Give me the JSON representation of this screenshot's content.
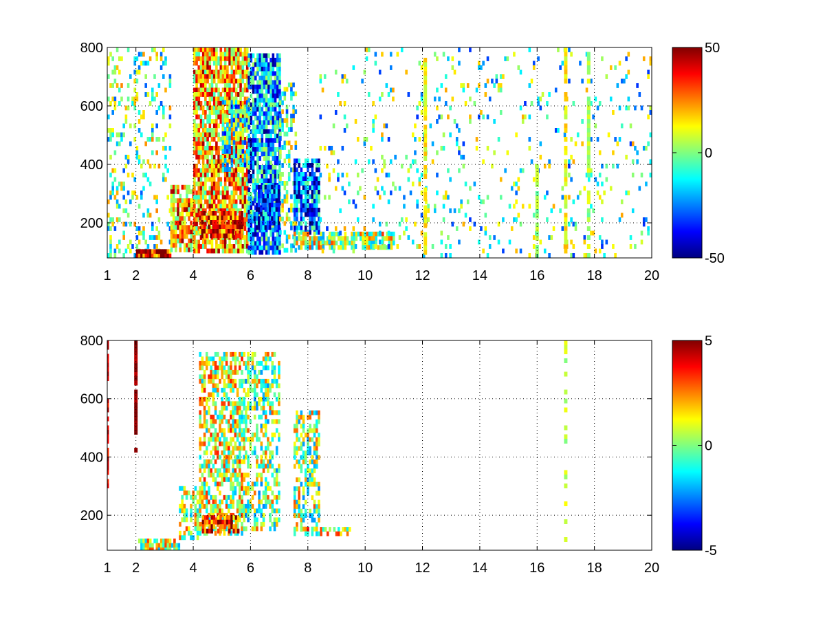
{
  "chart_data": [
    {
      "type": "heatmap",
      "title": "",
      "xlabel": "",
      "ylabel": "",
      "xlim": [
        1,
        20
      ],
      "ylim": [
        80,
        800
      ],
      "xticks": [
        1,
        2,
        4,
        6,
        8,
        10,
        12,
        14,
        16,
        18,
        20
      ],
      "yticks": [
        200,
        400,
        600,
        800
      ],
      "grid": true,
      "colormap": "jet",
      "colorbar": {
        "min": -50,
        "max": 50,
        "ticks": [
          50,
          0,
          -50
        ]
      },
      "colors": {
        "dark_red": "#800000",
        "red": "#ff0000",
        "yellow": "#ffff00",
        "cyan": "#00ffff",
        "blue": "#0000ff",
        "dark_blue": "#000080"
      },
      "regions": [
        {
          "x": [
            1,
            3.2
          ],
          "y": [
            80,
            800
          ],
          "value": -3,
          "density": 0.22,
          "note_free": true
        },
        {
          "x": [
            2,
            3.2
          ],
          "y": [
            80,
            110
          ],
          "value": 40,
          "density": 0.9
        },
        {
          "x": [
            3.2,
            4.0
          ],
          "y": [
            110,
            330
          ],
          "value": 22,
          "density": 0.8
        },
        {
          "x": [
            4.0,
            5.9
          ],
          "y": [
            100,
            800
          ],
          "value": 20,
          "density": 0.85
        },
        {
          "x": [
            4.2,
            5.7
          ],
          "y": [
            150,
            240
          ],
          "value": 35,
          "density": 0.9
        },
        {
          "x": [
            5.0,
            5.9
          ],
          "y": [
            380,
            620
          ],
          "value": -10,
          "density": 0.6
        },
        {
          "x": [
            5.9,
            7.0
          ],
          "y": [
            100,
            780
          ],
          "value": -22,
          "density": 0.85
        },
        {
          "x": [
            6.1,
            7.0
          ],
          "y": [
            180,
            330
          ],
          "value": -32,
          "density": 0.8
        },
        {
          "x": [
            7.0,
            7.6
          ],
          "y": [
            100,
            680
          ],
          "value": -5,
          "density": 0.4
        },
        {
          "x": [
            7.5,
            8.4
          ],
          "y": [
            170,
            420
          ],
          "value": -28,
          "density": 0.85
        },
        {
          "x": [
            7.5,
            11.0
          ],
          "y": [
            120,
            170
          ],
          "value": 5,
          "density": 0.7
        },
        {
          "x": [
            8.4,
            20
          ],
          "y": [
            80,
            800
          ],
          "value": -6,
          "density": 0.08
        }
      ],
      "lines": [
        {
          "x": 12.1,
          "y": [
            100,
            780
          ],
          "value": 12
        },
        {
          "x": 17.0,
          "y": [
            80,
            800
          ],
          "value": 12
        },
        {
          "x": 17.8,
          "y": [
            80,
            800
          ],
          "value": 4
        },
        {
          "x": 16.0,
          "y": [
            80,
            400
          ],
          "value": 2
        }
      ]
    },
    {
      "type": "heatmap",
      "title": "",
      "xlabel": "",
      "ylabel": "",
      "xlim": [
        1,
        20
      ],
      "ylim": [
        80,
        800
      ],
      "xticks": [
        1,
        2,
        4,
        6,
        8,
        10,
        12,
        14,
        16,
        18,
        20
      ],
      "yticks": [
        200,
        400,
        600,
        800
      ],
      "grid": true,
      "colormap": "jet",
      "colorbar": {
        "min": -5,
        "max": 5,
        "ticks": [
          5,
          0,
          -5
        ]
      },
      "regions": [
        {
          "x": [
            2.0,
            3.5
          ],
          "y": [
            80,
            120
          ],
          "value": 0.6,
          "density": 0.75
        },
        {
          "x": [
            3.5,
            4.2
          ],
          "y": [
            130,
            300
          ],
          "value": 0.5,
          "density": 0.5
        },
        {
          "x": [
            4.2,
            5.8
          ],
          "y": [
            140,
            760
          ],
          "value": 0.8,
          "density": 0.6
        },
        {
          "x": [
            4.3,
            5.6
          ],
          "y": [
            150,
            200
          ],
          "value": 3.6,
          "density": 0.8
        },
        {
          "x": [
            5.8,
            7.0
          ],
          "y": [
            150,
            760
          ],
          "value": 0.2,
          "density": 0.5
        },
        {
          "x": [
            7.5,
            8.4
          ],
          "y": [
            150,
            560
          ],
          "value": 0.3,
          "density": 0.55
        },
        {
          "x": [
            7.5,
            9.6
          ],
          "y": [
            130,
            160
          ],
          "value": 1.0,
          "density": 0.4
        }
      ],
      "lines": [
        {
          "x": 2.0,
          "y": [
            430,
            800
          ],
          "value": 5
        },
        {
          "x": 1.0,
          "y": [
            300,
            800
          ],
          "value": 4
        },
        {
          "x": 17.0,
          "y": [
            100,
            800
          ],
          "value": 0.6,
          "density": 0.25
        }
      ]
    }
  ]
}
